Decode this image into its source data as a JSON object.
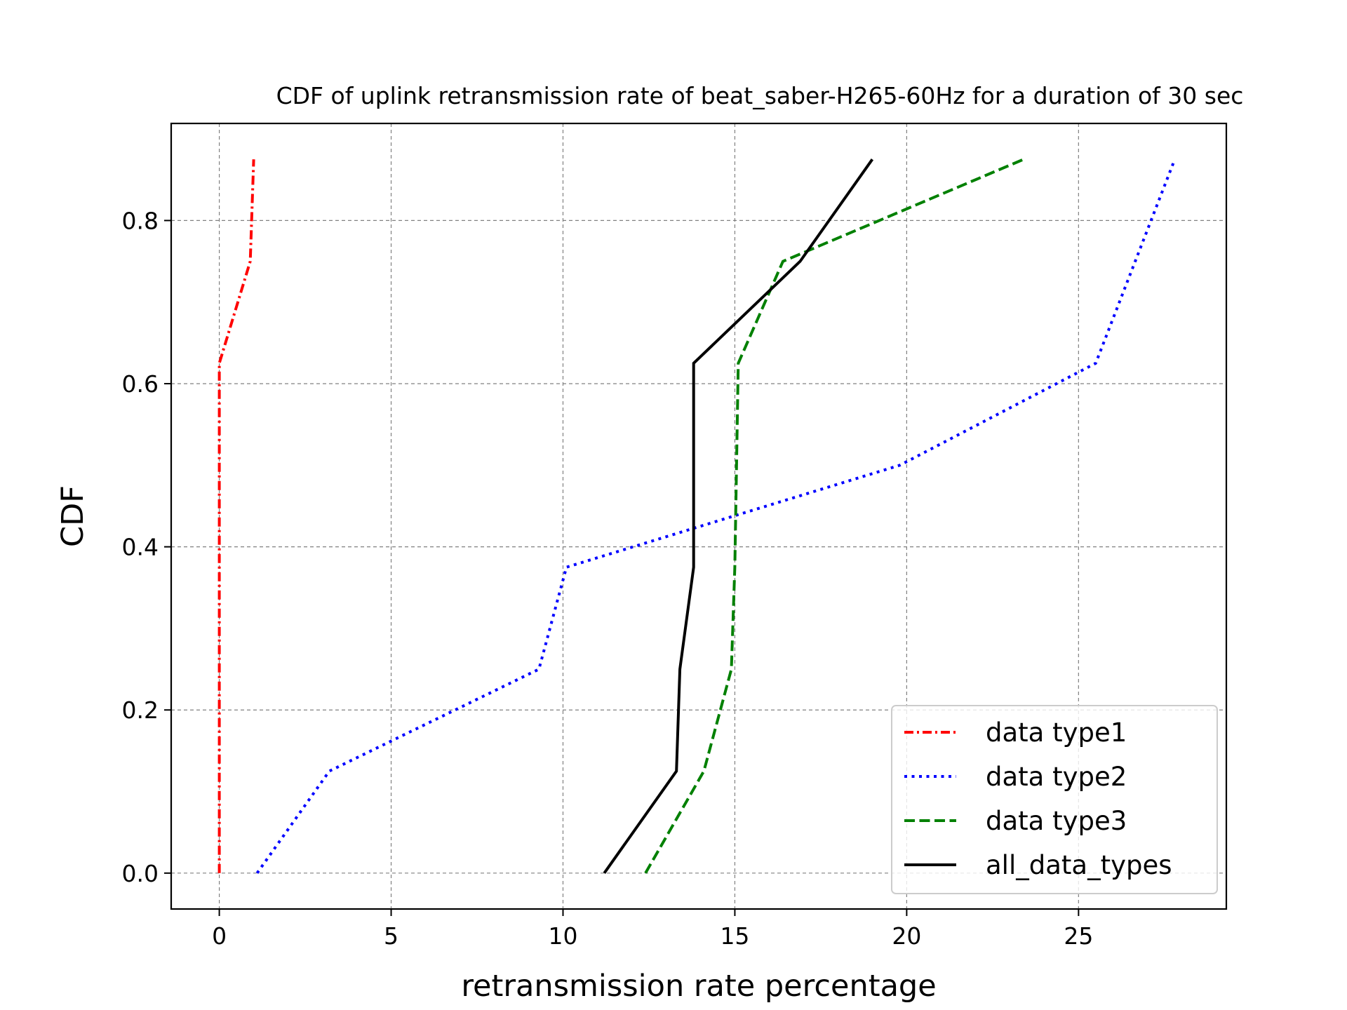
{
  "chart_data": {
    "type": "line",
    "title": "CDF of uplink retransmission rate of beat_saber-H265-60Hz for a duration of 30 sec",
    "xlabel": "retransmission rate percentage",
    "ylabel": "CDF",
    "xlim": [
      -1.4,
      29.3
    ],
    "ylim": [
      -0.044,
      0.919
    ],
    "xticks": [
      0,
      5,
      10,
      15,
      20,
      25
    ],
    "xtick_labels": [
      "0",
      "5",
      "10",
      "15",
      "20",
      "25"
    ],
    "yticks": [
      0.0,
      0.2,
      0.4,
      0.6,
      0.8
    ],
    "ytick_labels": [
      "0.0",
      "0.2",
      "0.4",
      "0.6",
      "0.8"
    ],
    "grid": true,
    "legend_position": "lower-right",
    "series": [
      {
        "name": "data type1",
        "color": "#ff0000",
        "style": "dashdot",
        "x": [
          0.0,
          0.0,
          0.0,
          0.0,
          0.0,
          0.0,
          0.9,
          1.0
        ],
        "y": [
          0.0,
          0.125,
          0.25,
          0.375,
          0.5,
          0.625,
          0.75,
          0.875
        ]
      },
      {
        "name": "data type2",
        "color": "#0000ff",
        "style": "dotted",
        "x": [
          1.1,
          3.2,
          9.3,
          10.1,
          19.8,
          25.5,
          27.8
        ],
        "y": [
          0.0,
          0.125,
          0.25,
          0.375,
          0.5,
          0.625,
          0.875
        ]
      },
      {
        "name": "data type3",
        "color": "#008000",
        "style": "dashed",
        "x": [
          12.4,
          14.1,
          14.9,
          15.0,
          15.1,
          16.4,
          23.4
        ],
        "y": [
          0.0,
          0.125,
          0.25,
          0.375,
          0.625,
          0.75,
          0.875
        ]
      },
      {
        "name": "all_data_types",
        "color": "#000000",
        "style": "solid",
        "x": [
          11.2,
          13.3,
          13.4,
          13.8,
          13.8,
          16.9,
          19.0
        ],
        "y": [
          0.0,
          0.125,
          0.25,
          0.375,
          0.625,
          0.75,
          0.875
        ]
      }
    ]
  }
}
